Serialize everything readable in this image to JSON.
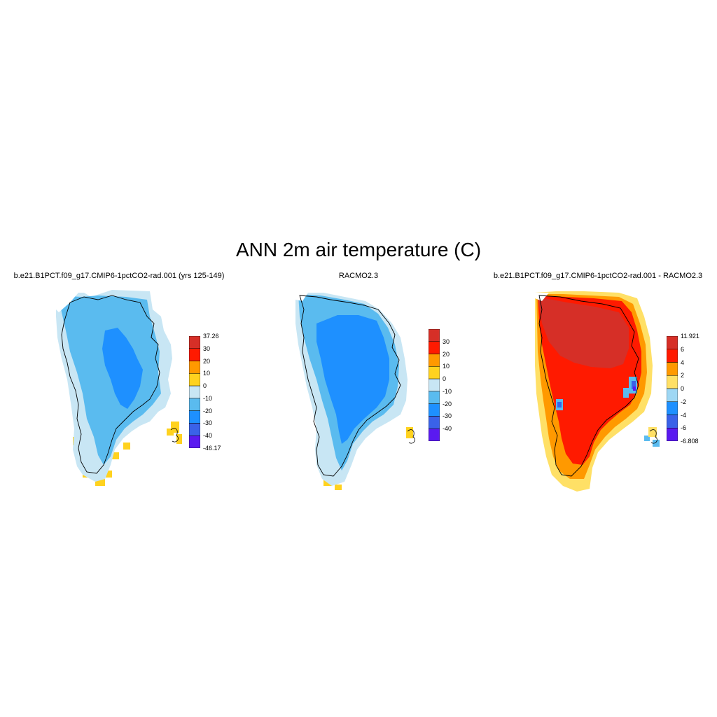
{
  "title": "ANN 2m air temperature (C)",
  "panels": [
    {
      "title": "b.e21.B1PCT.f09_g17.CMIP6-1pctCO2-rad.001 (yrs 125-149)",
      "colorbar": {
        "labels": [
          "37.26",
          "30",
          "20",
          "10",
          "0",
          "-10",
          "-20",
          "-30",
          "-40",
          "-46.17"
        ],
        "colors": [
          "#d62f27",
          "#ff1a00",
          "#ff9900",
          "#ffd21f",
          "#c8e6f4",
          "#5abbef",
          "#1e90ff",
          "#3a62e8",
          "#5a1af0"
        ]
      }
    },
    {
      "title": "RACMO2.3",
      "colorbar": {
        "labels": [
          "30",
          "20",
          "10",
          "0",
          "-10",
          "-20",
          "-30",
          "-40"
        ],
        "colors": [
          "#d62f27",
          "#ff1a00",
          "#ff9900",
          "#ffd21f",
          "#c8e6f4",
          "#5abbef",
          "#1e90ff",
          "#3a62e8",
          "#5a1af0"
        ]
      }
    },
    {
      "title": "b.e21.B1PCT.f09_g17.CMIP6-1pctCO2-rad.001 - RACMO2.3",
      "colorbar": {
        "labels": [
          "11.921",
          "6",
          "4",
          "2",
          "0",
          "-2",
          "-4",
          "-6",
          "-6.808"
        ],
        "colors": [
          "#d62f27",
          "#ff1a00",
          "#ff9900",
          "#ffe066",
          "#9ed7f4",
          "#1e90ff",
          "#3a62e8",
          "#5a1af0"
        ]
      }
    }
  ],
  "colors": {
    "map1_outer": "#c8e6f4",
    "map1_mid": "#5abbef",
    "map1_core": "#1e90ff",
    "map1_coast": "#ffd21f",
    "map2_outer": "#c8e6f4",
    "map2_mid": "#5abbef",
    "map2_core": "#1e90ff",
    "map2_coast": "#ffd21f",
    "map3_core": "#d62f27",
    "map3_mid": "#ff1a00",
    "map3_outer": "#ff9900",
    "map3_edge": "#ffe066",
    "map3_cold": "#5abbef"
  }
}
